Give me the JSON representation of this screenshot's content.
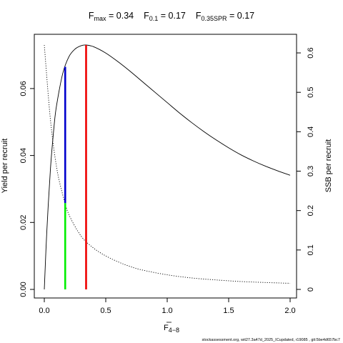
{
  "title": {
    "parts": [
      {
        "main": "F",
        "sub": "max",
        "rest": " = 0.34"
      },
      {
        "main": "F",
        "sub": "0.1",
        "rest": " = 0.17"
      },
      {
        "main": "F",
        "sub": "0.35SPR",
        "rest": " = 0.17"
      }
    ]
  },
  "xlabel": {
    "main": "F",
    "sub": "4−8"
  },
  "footer": "stockassessment.org, wit27.3a47d_2025_ICupdated, r19085 , git:5be4d657bc7",
  "chart_data": {
    "type": "line",
    "xlim": [
      0,
      2
    ],
    "ylim_left": [
      0,
      0.073
    ],
    "ylim_right": [
      0,
      0.62
    ],
    "x_ticks": [
      0.0,
      0.5,
      1.0,
      1.5,
      2.0
    ],
    "x_tick_labels": [
      "0.0",
      "0.5",
      "1.0",
      "1.5",
      "2.0"
    ],
    "y_left_ticks": [
      0.0,
      0.02,
      0.04,
      0.06
    ],
    "y_left_tick_labels": [
      "0.00",
      "0.02",
      "0.04",
      "0.06"
    ],
    "y_right_ticks": [
      0,
      0.1,
      0.2,
      0.3,
      0.4,
      0.5,
      0.6
    ],
    "y_right_tick_labels": [
      "0",
      "0.1",
      "0.2",
      "0.3",
      "0.4",
      "0.5",
      "0.6"
    ],
    "ylabel_left": "Yield per recruit",
    "ylabel_right": "SSB per recruit",
    "grid": false,
    "legend": "none",
    "series": [
      {
        "axis": "left",
        "style": "solid",
        "color": "#000000",
        "x": [
          0.0,
          0.02,
          0.05,
          0.08,
          0.1,
          0.15,
          0.2,
          0.25,
          0.3,
          0.34,
          0.4,
          0.5,
          0.6,
          0.7,
          0.8,
          0.9,
          1.0,
          1.1,
          1.2,
          1.3,
          1.4,
          1.5,
          1.6,
          1.7,
          1.8,
          1.9,
          2.0
        ],
        "y": [
          0.0,
          0.017,
          0.036,
          0.049,
          0.055,
          0.0645,
          0.0695,
          0.0718,
          0.0728,
          0.073,
          0.0725,
          0.0706,
          0.068,
          0.0651,
          0.062,
          0.0589,
          0.0558,
          0.0527,
          0.0498,
          0.0471,
          0.0446,
          0.0423,
          0.0402,
          0.0384,
          0.0368,
          0.0354,
          0.0341
        ]
      },
      {
        "axis": "right",
        "style": "dotted",
        "color": "#000000",
        "x": [
          0.0,
          0.05,
          0.1,
          0.15,
          0.2,
          0.3,
          0.4,
          0.5,
          0.6,
          0.7,
          0.8,
          1.0,
          1.2,
          1.4,
          1.6,
          1.8,
          2.0
        ],
        "y": [
          0.62,
          0.43,
          0.31,
          0.24,
          0.19,
          0.135,
          0.105,
          0.085,
          0.07,
          0.058,
          0.049,
          0.037,
          0.029,
          0.024,
          0.02,
          0.0175,
          0.0155
        ]
      }
    ],
    "reference_lines": [
      {
        "x": 0.17,
        "y_from": 0.0,
        "y_to": 0.0258,
        "color": "#00ee00"
      },
      {
        "x": 0.17,
        "y_from": 0.0258,
        "y_to": 0.0665,
        "color": "#0000cc"
      },
      {
        "x": 0.34,
        "y_from": 0.0,
        "y_to": 0.073,
        "color": "#ee0000"
      }
    ]
  }
}
